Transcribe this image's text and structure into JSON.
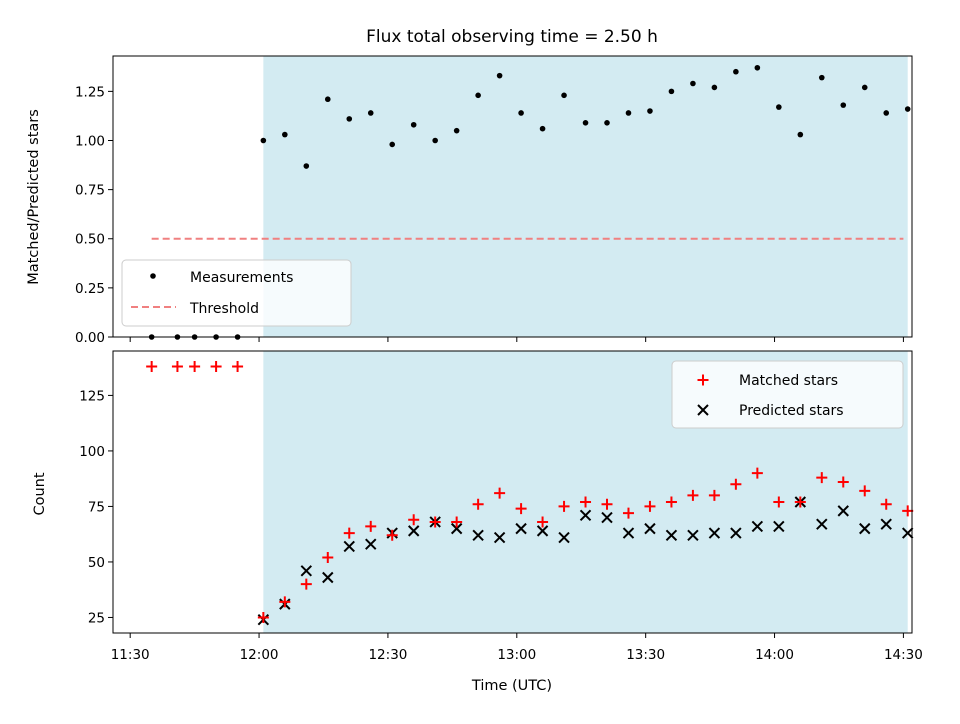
{
  "colors": {
    "shade": "#d3ebf2",
    "threshold": "#f08080",
    "matched": "#ff0000",
    "predicted": "#000000",
    "measurement": "#000000"
  },
  "chart_data": [
    {
      "type": "scatter",
      "title": "Flux total observing time = 2.50 h",
      "ylabel": "Matched/Predicted stars",
      "xlabel": "",
      "x_unit": "minutes since midnight UTC",
      "xlim": [
        686,
        872
      ],
      "ylim": [
        0,
        1.43
      ],
      "yticks": [
        0.0,
        0.25,
        0.5,
        0.75,
        1.0,
        1.25
      ],
      "ytick_labels": [
        "0.00",
        "0.25",
        "0.50",
        "0.75",
        "1.00",
        "1.25"
      ],
      "shaded_region": [
        721,
        871
      ],
      "legend": {
        "placement": "lower-left",
        "entries": [
          "Measurements",
          "Threshold"
        ]
      },
      "threshold": {
        "name": "Threshold",
        "y": 0.5,
        "x_range": [
          695,
          870
        ]
      },
      "series": [
        {
          "name": "Measurements",
          "x": [
            695,
            701,
            705,
            710,
            715,
            721,
            726,
            731,
            736,
            741,
            746,
            751,
            756,
            761,
            766,
            771,
            776,
            781,
            786,
            791,
            796,
            801,
            806,
            811,
            816,
            821,
            826,
            831,
            836,
            841,
            846,
            851,
            856,
            861,
            866,
            871
          ],
          "y": [
            0.0,
            0.0,
            0.0,
            0.0,
            0.0,
            1.0,
            1.03,
            0.87,
            1.21,
            1.11,
            1.14,
            0.98,
            1.08,
            1.0,
            1.05,
            1.23,
            1.33,
            1.14,
            1.06,
            1.23,
            1.09,
            1.09,
            1.14,
            1.15,
            1.25,
            1.29,
            1.27,
            1.35,
            1.37,
            1.17,
            1.03,
            1.32,
            1.18,
            1.27,
            1.14,
            1.16
          ]
        }
      ]
    },
    {
      "type": "scatter",
      "title": "",
      "ylabel": "Count",
      "xlabel": "Time (UTC)",
      "x_unit": "minutes since midnight UTC",
      "xlim": [
        686,
        872
      ],
      "ylim": [
        18,
        145
      ],
      "yticks": [
        25,
        50,
        75,
        100,
        125
      ],
      "xticks": [
        690,
        720,
        750,
        780,
        810,
        840,
        870
      ],
      "xtick_labels": [
        "11:30",
        "12:00",
        "12:30",
        "13:00",
        "13:30",
        "14:00",
        "14:30"
      ],
      "shaded_region": [
        721,
        871
      ],
      "legend": {
        "placement": "top-right",
        "entries": [
          "Matched stars",
          "Predicted stars"
        ]
      },
      "series": [
        {
          "name": "Matched stars",
          "marker": "plus",
          "x": [
            695,
            701,
            705,
            710,
            715,
            721,
            726,
            731,
            736,
            741,
            746,
            751,
            756,
            761,
            766,
            771,
            776,
            781,
            786,
            791,
            796,
            801,
            806,
            811,
            816,
            821,
            826,
            831,
            836,
            841,
            846,
            851,
            856,
            861,
            866,
            871
          ],
          "y": [
            138,
            138,
            138,
            138,
            138,
            25,
            32,
            40,
            52,
            63,
            66,
            62,
            69,
            68,
            68,
            76,
            81,
            74,
            68,
            75,
            77,
            76,
            72,
            75,
            77,
            80,
            80,
            85,
            90,
            77,
            77,
            88,
            86,
            82,
            76,
            73
          ]
        },
        {
          "name": "Predicted stars",
          "marker": "x",
          "x": [
            721,
            726,
            731,
            736,
            741,
            746,
            751,
            756,
            761,
            766,
            771,
            776,
            781,
            786,
            791,
            796,
            801,
            806,
            811,
            816,
            821,
            826,
            831,
            836,
            841,
            846,
            851,
            856,
            861,
            866,
            871
          ],
          "y": [
            24,
            31,
            46,
            43,
            57,
            58,
            63,
            64,
            68,
            65,
            62,
            61,
            65,
            64,
            61,
            71,
            70,
            63,
            65,
            62,
            62,
            63,
            63,
            66,
            66,
            77,
            67,
            73,
            65,
            67,
            63
          ]
        }
      ]
    }
  ]
}
